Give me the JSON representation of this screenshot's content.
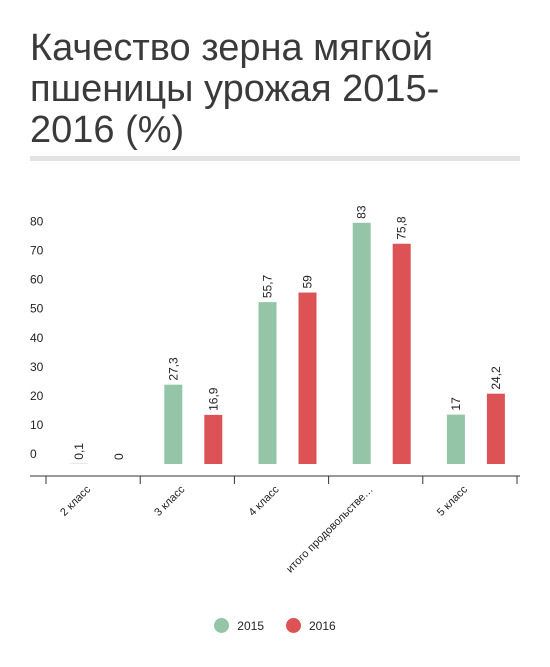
{
  "title": "Качество зерна мягкой пшеницы урожая 2015-2016 (%)",
  "colors": {
    "s2015": "#93c5a6",
    "s2016": "#dd5355"
  },
  "chart_data": {
    "type": "bar",
    "title": "Качество зерна мягкой пшеницы урожая 2015-2016 (%)",
    "categories": [
      "2 класс",
      "3 класс",
      "4 класс",
      "итого продовольстве…",
      "5 класс"
    ],
    "series": [
      {
        "name": "2015",
        "values": [
          0.1,
          27.3,
          55.7,
          83,
          17
        ],
        "labels": [
          "0,1",
          "27,3",
          "55,7",
          "83",
          "17"
        ]
      },
      {
        "name": "2016",
        "values": [
          0,
          16.9,
          59,
          75.8,
          24.2
        ],
        "labels": [
          "0",
          "16,9",
          "59",
          "75,8",
          "24,2"
        ]
      }
    ],
    "yticks": [
      0,
      10,
      20,
      30,
      40,
      50,
      60,
      70,
      80
    ],
    "ylim": [
      0,
      85
    ],
    "xlabel": "",
    "ylabel": "",
    "grid": false,
    "legend": "bottom-center"
  }
}
